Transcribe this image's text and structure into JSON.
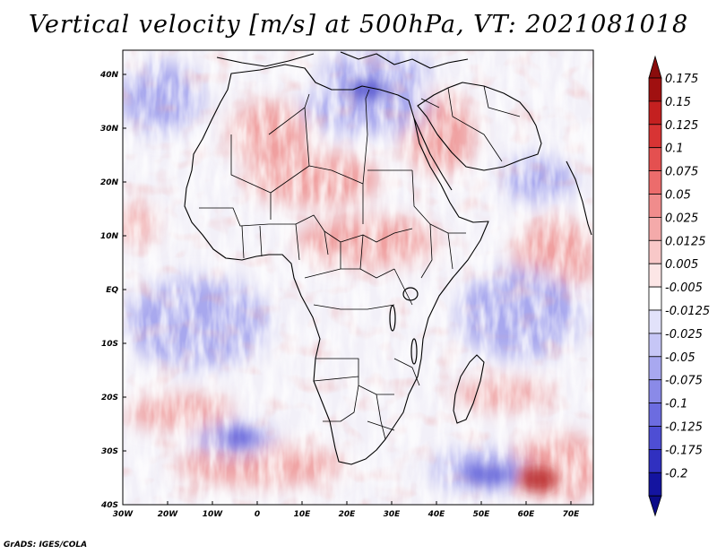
{
  "title": "Vertical velocity [m/s] at 500hPa, VT: 2021081018",
  "credit": "GrADS: IGES/COLA",
  "lat_labels": [
    "40N",
    "30N",
    "20N",
    "10N",
    "EQ",
    "10S",
    "20S",
    "30S",
    "40S"
  ],
  "lon_labels": [
    "30W",
    "20W",
    "10W",
    "0",
    "10E",
    "20E",
    "30E",
    "40E",
    "50E",
    "60E",
    "70E"
  ],
  "colorbar": {
    "labels": [
      "0.175",
      "0.15",
      "0.125",
      "0.1",
      "0.075",
      "0.05",
      "0.025",
      "0.0125",
      "0.005",
      "-0.005",
      "-0.0125",
      "-0.025",
      "-0.05",
      "-0.075",
      "-0.1",
      "-0.125",
      "-0.175",
      "-0.2"
    ],
    "colors": [
      "#a01010",
      "#c42020",
      "#d83434",
      "#e45050",
      "#ec6c6c",
      "#f08c8c",
      "#f4aaaa",
      "#f8c8c8",
      "#fce6e6",
      "#ffffff",
      "#e2e2fa",
      "#c6c6f6",
      "#a8a8f0",
      "#8a8ae8",
      "#6c6ce0",
      "#4e4ed4",
      "#3030c0",
      "#1414a0"
    ],
    "top_arrow_color": "#8a0c0c",
    "bottom_arrow_color": "#0c0c88"
  },
  "field_colors": {
    "positive": "#f0a0a0",
    "negative": "#a8a8ee",
    "neutral": "#f2f0f8"
  }
}
